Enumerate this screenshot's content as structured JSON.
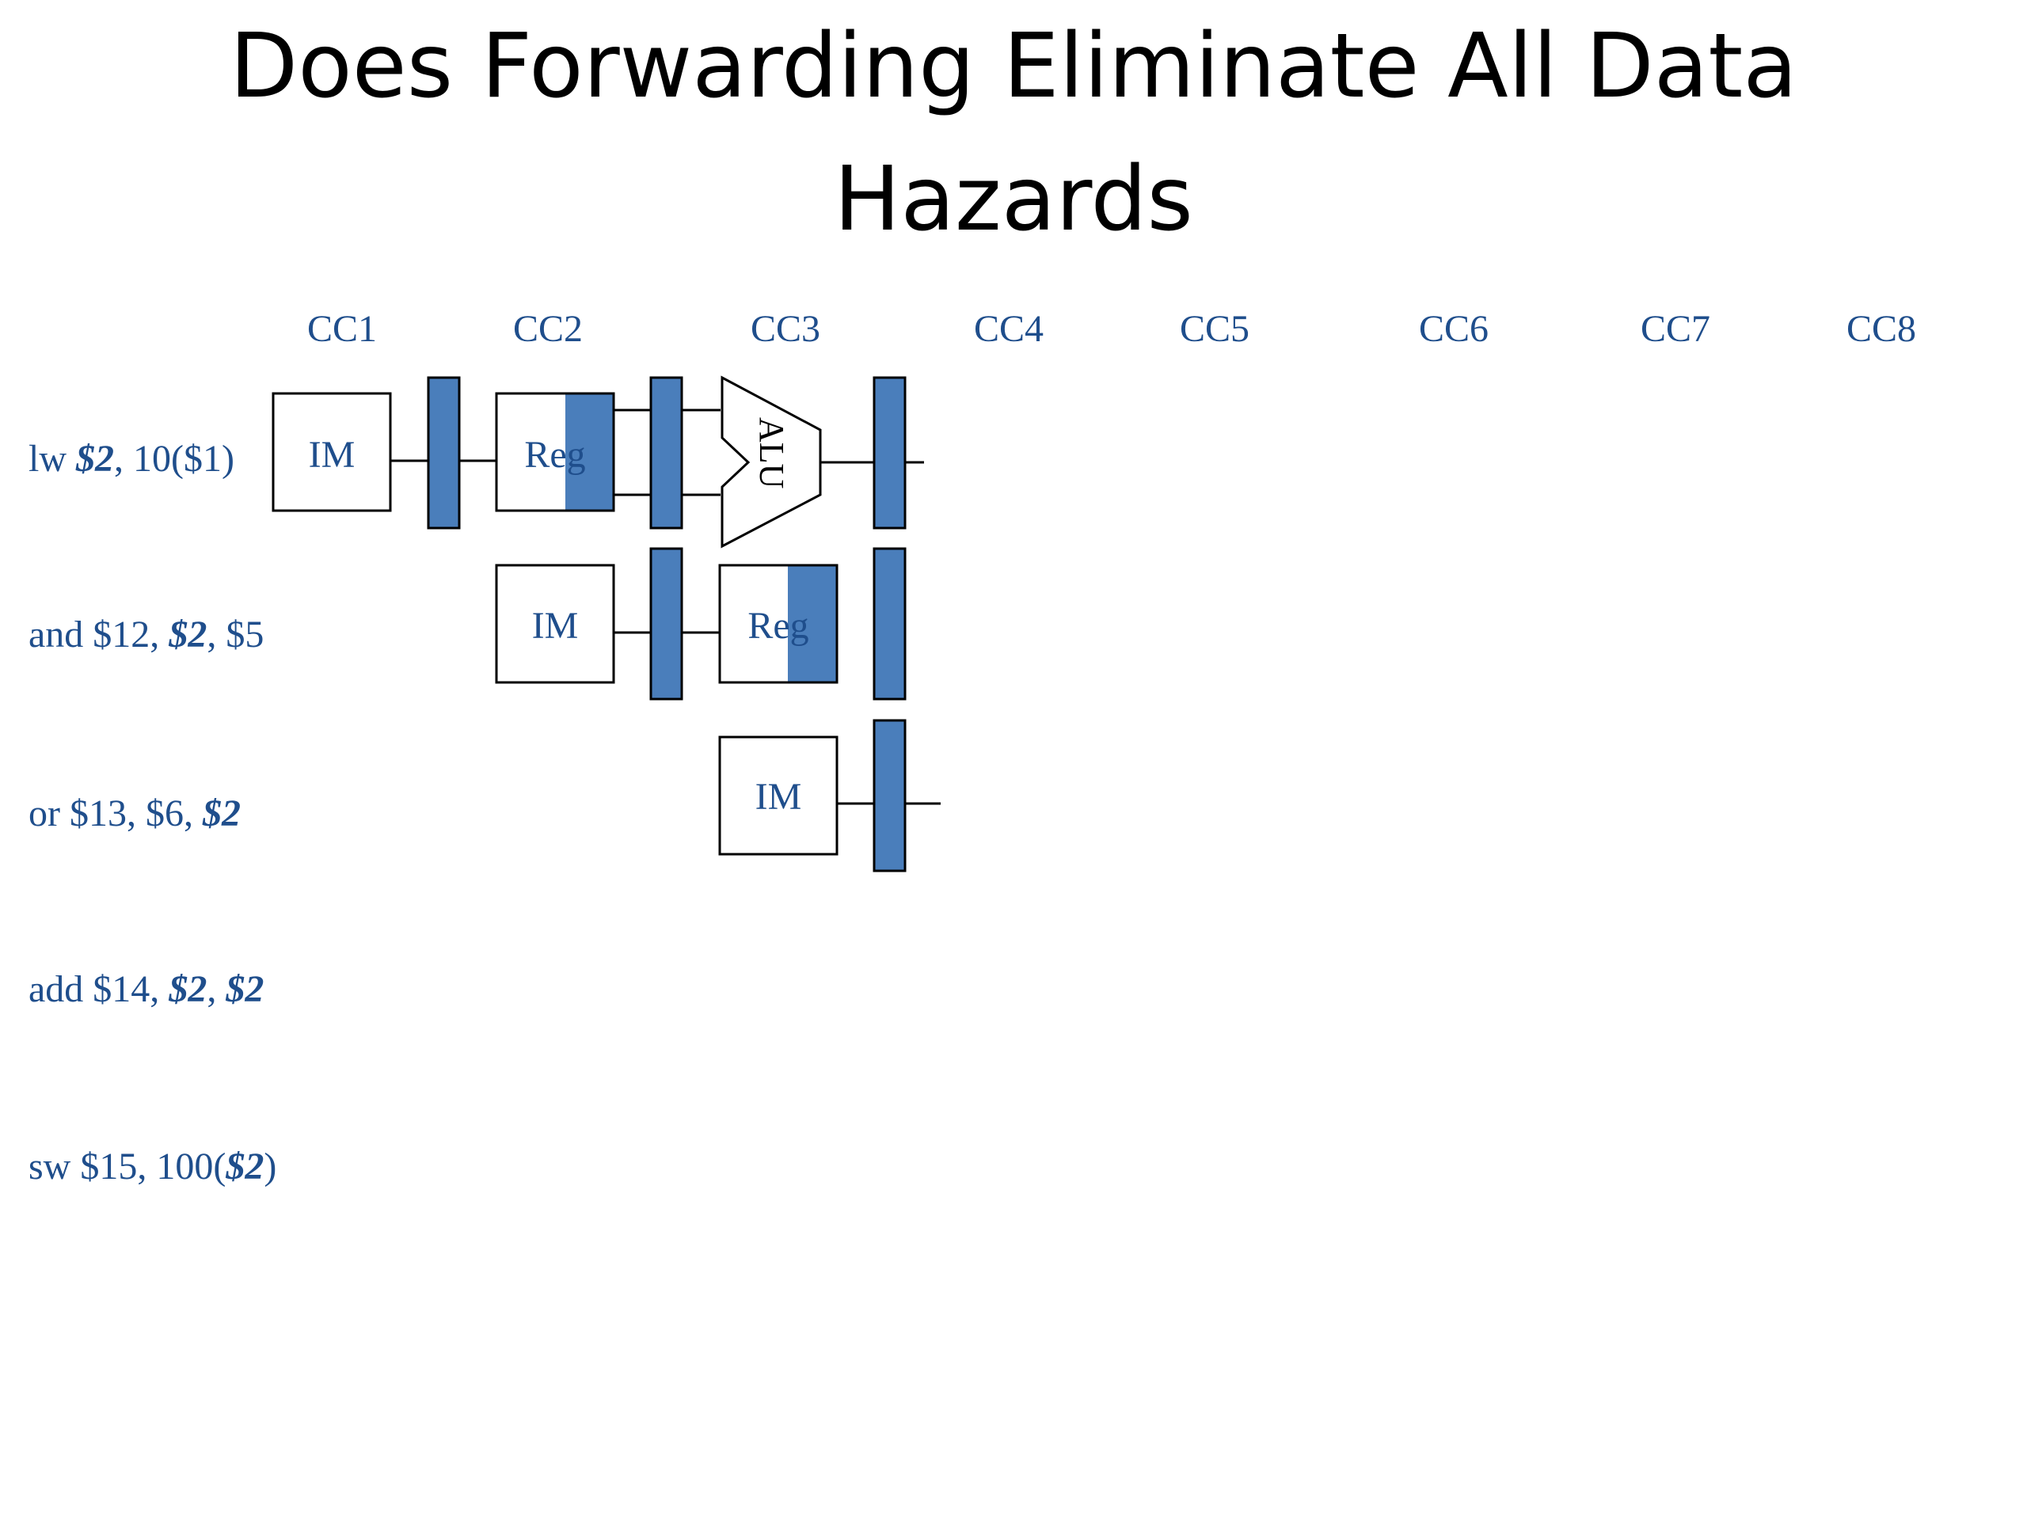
{
  "title": {
    "line1": "Does Forwarding Eliminate All Data",
    "line2": "Hazards"
  },
  "clock_cycles": [
    "CC1",
    "CC2",
    "CC3",
    "CC4",
    "CC5",
    "CC6",
    "CC7",
    "CC8"
  ],
  "instructions": [
    {
      "parts": [
        {
          "text": "lw "
        },
        {
          "text": "$2",
          "reg": true
        },
        {
          "text": ", 10($1)"
        }
      ]
    },
    {
      "parts": [
        {
          "text": "and $12, "
        },
        {
          "text": "$2",
          "reg": true
        },
        {
          "text": ", $5"
        }
      ]
    },
    {
      "parts": [
        {
          "text": "or $13, $6, "
        },
        {
          "text": "$2",
          "reg": true
        }
      ]
    },
    {
      "parts": [
        {
          "text": "add $14, "
        },
        {
          "text": "$2",
          "reg": true
        },
        {
          "text": ", "
        },
        {
          "text": "$2",
          "reg": true
        }
      ]
    },
    {
      "parts": [
        {
          "text": "sw $15, 100("
        },
        {
          "text": "$2",
          "reg": true
        },
        {
          "text": ")"
        }
      ]
    }
  ],
  "stage_labels": {
    "im": "IM",
    "reg": "Reg",
    "alu": "ALU"
  },
  "colors": {
    "text": "#1f4e8c",
    "pipeline_register": "#4a7ebb",
    "title": "#000000"
  }
}
